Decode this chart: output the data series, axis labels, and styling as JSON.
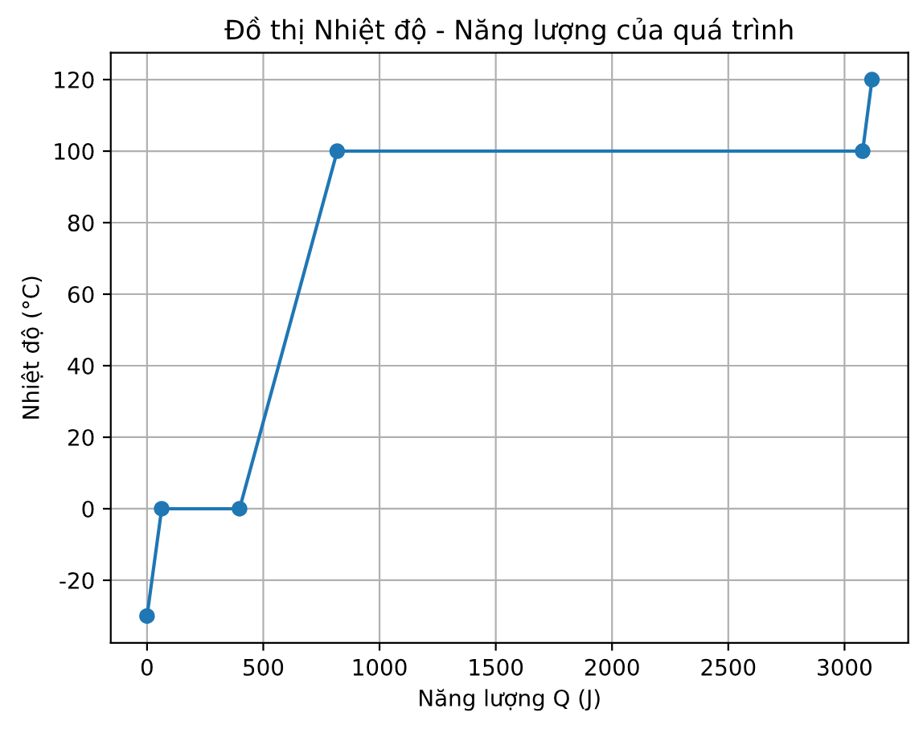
{
  "chart_data": {
    "type": "line",
    "title": "Đồ thị Nhiệt độ - Năng lượng của quá trình",
    "xlabel": "Năng lượng Q (J)",
    "ylabel": "Nhiệt độ (°C)",
    "x": [
      0,
      63,
      398,
      818,
      3078,
      3118
    ],
    "series": [
      {
        "color": "#1f77b4",
        "values": [
          -30,
          0,
          0,
          100,
          100,
          120
        ]
      }
    ],
    "xlim": [
      -156,
      3274
    ],
    "xticks": [
      0,
      500,
      1000,
      1500,
      2000,
      2500,
      3000
    ],
    "ylim": [
      -37.5,
      127.5
    ],
    "yticks": [
      -20,
      0,
      20,
      40,
      60,
      80,
      100,
      120
    ],
    "grid": true,
    "marker": "circle",
    "line_style": "solid"
  }
}
